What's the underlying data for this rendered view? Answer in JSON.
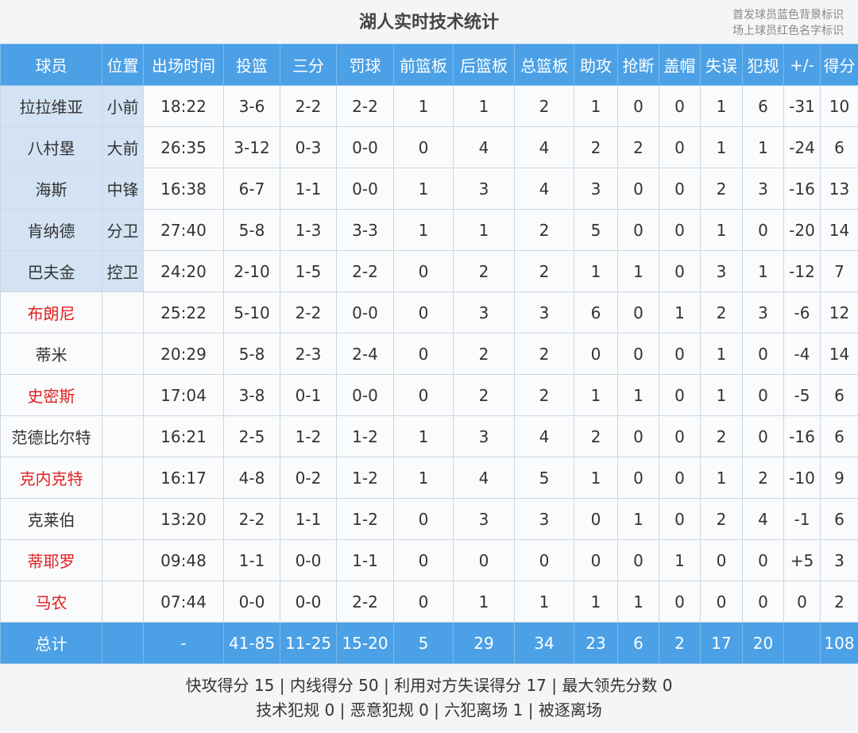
{
  "title": "湖人实时技术统计",
  "notes": [
    "首发球员蓝色背景标识",
    "场上球员红色名字标识"
  ],
  "colors": {
    "starter_background": "#d3e3f3",
    "on_court_name": "#e02020"
  },
  "headers": [
    "球员",
    "位置",
    "出场时间",
    "投篮",
    "三分",
    "罚球",
    "前篮板",
    "后篮板",
    "总篮板",
    "助攻",
    "抢断",
    "盖帽",
    "失误",
    "犯规",
    "+/-",
    "得分"
  ],
  "players": [
    {
      "name": "拉拉维亚",
      "position": "小前",
      "starter": true,
      "on_court": false,
      "minutes": "18:22",
      "stats": [
        "3-6",
        "2-2",
        "2-2",
        "1",
        "1",
        "2",
        "1",
        "0",
        "0",
        "1",
        "6"
      ],
      "plus_minus": "-31",
      "points": "10"
    },
    {
      "name": "八村塁",
      "position": "大前",
      "starter": true,
      "on_court": false,
      "minutes": "26:35",
      "stats": [
        "3-12",
        "0-3",
        "0-0",
        "0",
        "4",
        "4",
        "2",
        "2",
        "0",
        "1",
        "1"
      ],
      "plus_minus": "-24",
      "points": "6"
    },
    {
      "name": "海斯",
      "position": "中锋",
      "starter": true,
      "on_court": false,
      "minutes": "16:38",
      "stats": [
        "6-7",
        "1-1",
        "0-0",
        "1",
        "3",
        "4",
        "3",
        "0",
        "0",
        "2",
        "3"
      ],
      "plus_minus": "-16",
      "points": "13"
    },
    {
      "name": "肯纳德",
      "position": "分卫",
      "starter": true,
      "on_court": false,
      "minutes": "27:40",
      "stats": [
        "5-8",
        "1-3",
        "3-3",
        "1",
        "1",
        "2",
        "5",
        "0",
        "0",
        "1",
        "0"
      ],
      "plus_minus": "-20",
      "points": "14"
    },
    {
      "name": "巴夫金",
      "position": "控卫",
      "starter": true,
      "on_court": false,
      "minutes": "24:20",
      "stats": [
        "2-10",
        "1-5",
        "2-2",
        "0",
        "2",
        "2",
        "1",
        "1",
        "0",
        "3",
        "1"
      ],
      "plus_minus": "-12",
      "points": "7"
    },
    {
      "name": "布朗尼",
      "starter": false,
      "on_court": true,
      "minutes": "25:22",
      "stats": [
        "5-10",
        "2-2",
        "0-0",
        "0",
        "3",
        "3",
        "6",
        "0",
        "1",
        "2",
        "3"
      ],
      "plus_minus": "-6",
      "points": "12"
    },
    {
      "name": "蒂米",
      "starter": false,
      "on_court": false,
      "minutes": "20:29",
      "stats": [
        "5-8",
        "2-3",
        "2-4",
        "0",
        "2",
        "2",
        "0",
        "0",
        "0",
        "1",
        "0"
      ],
      "plus_minus": "-4",
      "points": "14"
    },
    {
      "name": "史密斯",
      "starter": false,
      "on_court": true,
      "minutes": "17:04",
      "stats": [
        "3-8",
        "0-1",
        "0-0",
        "0",
        "2",
        "2",
        "1",
        "1",
        "0",
        "1",
        "0"
      ],
      "plus_minus": "-5",
      "points": "6"
    },
    {
      "name": "范德比尔特",
      "starter": false,
      "on_court": false,
      "minutes": "16:21",
      "stats": [
        "2-5",
        "1-2",
        "1-2",
        "1",
        "3",
        "4",
        "2",
        "0",
        "0",
        "2",
        "0"
      ],
      "plus_minus": "-16",
      "points": "6"
    },
    {
      "name": "克内克特",
      "starter": false,
      "on_court": true,
      "minutes": "16:17",
      "stats": [
        "4-8",
        "0-2",
        "1-2",
        "1",
        "4",
        "5",
        "1",
        "0",
        "0",
        "1",
        "2"
      ],
      "plus_minus": "-10",
      "points": "9"
    },
    {
      "name": "克莱伯",
      "starter": false,
      "on_court": false,
      "minutes": "13:20",
      "stats": [
        "2-2",
        "1-1",
        "1-2",
        "0",
        "3",
        "3",
        "0",
        "1",
        "0",
        "2",
        "4"
      ],
      "plus_minus": "-1",
      "points": "6"
    },
    {
      "name": "蒂耶罗",
      "starter": false,
      "on_court": true,
      "minutes": "09:48",
      "stats": [
        "1-1",
        "0-0",
        "1-1",
        "0",
        "0",
        "0",
        "0",
        "0",
        "1",
        "0",
        "0"
      ],
      "plus_minus": "+5",
      "points": "3"
    },
    {
      "name": "马农",
      "starter": false,
      "on_court": true,
      "minutes": "07:44",
      "stats": [
        "0-0",
        "0-0",
        "2-2",
        "0",
        "1",
        "1",
        "1",
        "1",
        "0",
        "0",
        "0"
      ],
      "plus_minus": "0",
      "points": "2"
    }
  ],
  "total": {
    "label": "总计",
    "minutes": "-",
    "stats": [
      "41-85",
      "11-25",
      "15-20",
      "5",
      "29",
      "34",
      "23",
      "6",
      "2",
      "17",
      "20"
    ],
    "points": "108"
  },
  "footer": [
    "快攻得分 15 | 内线得分 50 | 利用对方失误得分 17 | 最大领先分数 0",
    "技术犯规 0 | 恶意犯规 0 | 六犯离场 1 | 被逐离场"
  ]
}
